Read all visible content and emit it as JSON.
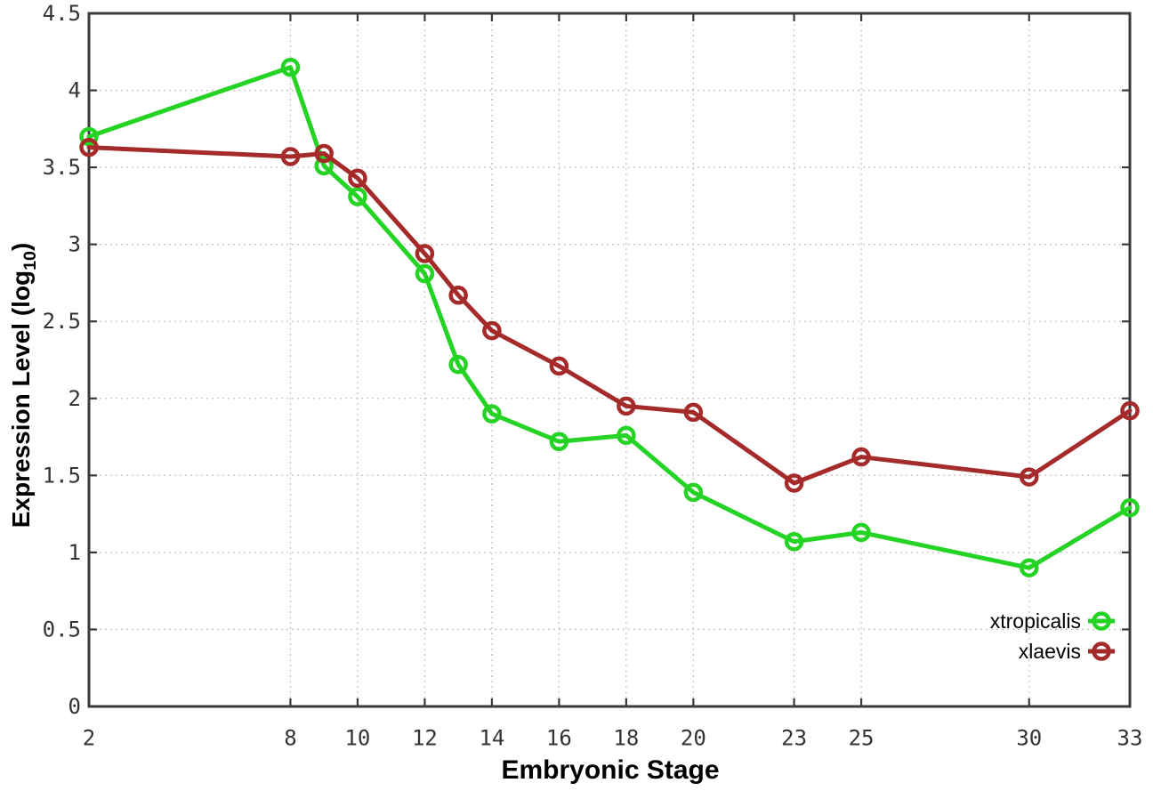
{
  "chart_data": {
    "type": "line",
    "title": "",
    "xlabel": "Embryonic Stage",
    "ylabel": "Expression Level (log10)",
    "ylabel_parts": {
      "main": "Expression Level (log",
      "sub": "10",
      "end": ")"
    },
    "x": [
      2,
      8,
      9,
      10,
      12,
      13,
      14,
      16,
      18,
      20,
      23,
      25,
      30,
      33
    ],
    "series": [
      {
        "name": "xtropicalis",
        "color": "#24d324",
        "values": [
          3.7,
          4.15,
          3.51,
          3.31,
          2.81,
          2.22,
          1.9,
          1.72,
          1.76,
          1.39,
          1.07,
          1.13,
          0.9,
          1.29
        ]
      },
      {
        "name": "xlaevis",
        "color": "#a52a2a",
        "values": [
          3.63,
          3.57,
          3.59,
          3.43,
          2.94,
          2.67,
          2.44,
          2.21,
          1.95,
          1.91,
          1.45,
          1.62,
          1.49,
          1.92
        ]
      }
    ],
    "xlim": [
      2,
      33
    ],
    "ylim": [
      0,
      4.5
    ],
    "xticks": [
      2,
      8,
      10,
      12,
      14,
      16,
      18,
      20,
      23,
      25,
      30,
      33
    ],
    "yticks": [
      0,
      0.5,
      1,
      1.5,
      2,
      2.5,
      3,
      3.5,
      4,
      4.5
    ],
    "ytick_labels": [
      "0",
      "0.5",
      "1",
      "1.5",
      "2",
      "2.5",
      "3",
      "3.5",
      "4",
      "4.5"
    ],
    "grid": true,
    "grid_style": "dotted",
    "marker": "open-circle",
    "legend_position": "bottom-right",
    "colors": {
      "grid": "#c6c6c6",
      "border": "#3a3a3a",
      "tick_text": "#333333",
      "title_text": "#000000",
      "background": "#ffffff"
    }
  }
}
